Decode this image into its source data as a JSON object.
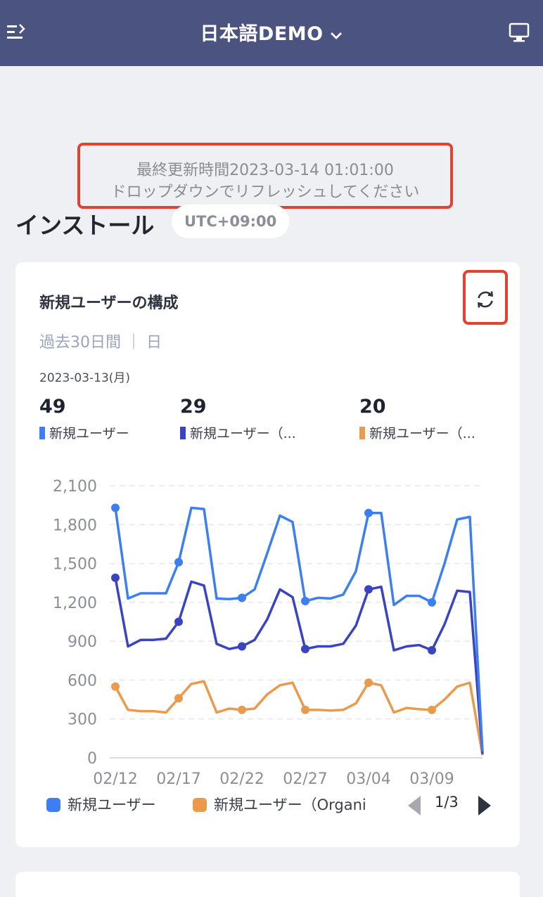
{
  "header": {
    "title": "日本語DEMO",
    "menu_icon": "collapse-menu-icon",
    "monitor_icon": "monitor-icon",
    "bg_color": "#4b5480"
  },
  "refresh_note": {
    "line1": "最終更新時間2023-03-14 01:01:00",
    "line2": "ドロップダウンでリフレッシュしてください"
  },
  "section": {
    "title": "インストール",
    "timezone": "UTC+09:00"
  },
  "card": {
    "title": "新規ユーザーの構成",
    "period": "過去30日間 ｜ 日",
    "date": "2023-03-13(月)",
    "metrics": [
      {
        "value": "49",
        "label": "新規ユーザー",
        "color": "#3d7ff0"
      },
      {
        "value": "29",
        "label": "新規ユーザー（...",
        "color": "#3a44c0"
      },
      {
        "value": "20",
        "label": "新規ユーザー（...",
        "color": "#ea9a4c"
      }
    ],
    "legend": {
      "item1": "新規ユーザー",
      "item2": "新規ユーザー（Organi",
      "page": "1/3"
    }
  },
  "chart_data": {
    "type": "line",
    "ylim": [
      0,
      2100
    ],
    "y_ticks": [
      "0",
      "300",
      "600",
      "900",
      "1,200",
      "1,500",
      "1,800",
      "2,100"
    ],
    "x_tick_labels": [
      "02/12",
      "02/17",
      "02/22",
      "02/27",
      "03/04",
      "03/09"
    ],
    "x": [
      "02/12",
      "02/13",
      "02/14",
      "02/15",
      "02/16",
      "02/17",
      "02/18",
      "02/19",
      "02/20",
      "02/21",
      "02/22",
      "02/23",
      "02/24",
      "02/25",
      "02/26",
      "02/27",
      "02/28",
      "03/01",
      "03/02",
      "03/03",
      "03/04",
      "03/05",
      "03/06",
      "03/07",
      "03/08",
      "03/09",
      "03/10",
      "03/11",
      "03/12",
      "03/13"
    ],
    "series": [
      {
        "name": "新規ユーザー",
        "color": "#3d7ff0",
        "values": [
          1930,
          1230,
          1270,
          1270,
          1270,
          1510,
          1930,
          1920,
          1230,
          1225,
          1235,
          1300,
          1580,
          1870,
          1820,
          1210,
          1235,
          1230,
          1260,
          1440,
          1890,
          1890,
          1180,
          1250,
          1250,
          1200,
          1500,
          1840,
          1860,
          49
        ],
        "markers": [
          0,
          5,
          10,
          15,
          20,
          25
        ]
      },
      {
        "name": "新規ユーザー（Organic）",
        "color": "#3a44c0",
        "values": [
          1390,
          860,
          910,
          910,
          920,
          1050,
          1360,
          1330,
          880,
          840,
          860,
          910,
          1070,
          1300,
          1240,
          840,
          860,
          860,
          880,
          1020,
          1300,
          1320,
          830,
          860,
          870,
          830,
          1030,
          1290,
          1280,
          29
        ],
        "markers": [
          0,
          5,
          10,
          15,
          20,
          25
        ]
      },
      {
        "name": "新規ユーザー（Organi",
        "color": "#ea9a4c",
        "values": [
          550,
          370,
          360,
          360,
          350,
          460,
          570,
          590,
          350,
          380,
          370,
          380,
          490,
          560,
          580,
          370,
          370,
          365,
          370,
          420,
          580,
          560,
          350,
          385,
          375,
          370,
          450,
          550,
          580,
          20
        ],
        "markers": [
          0,
          5,
          10,
          15,
          20,
          25
        ]
      }
    ]
  }
}
